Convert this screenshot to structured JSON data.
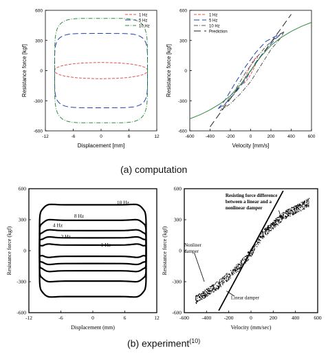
{
  "captions": {
    "computation": "(a)  computation",
    "experiment": "(b)  experiment",
    "experiment_ref": "(10)"
  },
  "chart_data": [
    {
      "id": "comp-hysteresis",
      "type": "line",
      "xlabel": "Displacement [mm]",
      "ylabel": "Resistance force [kgf]",
      "xlim": [
        -12,
        12
      ],
      "ylim": [
        -600,
        600
      ],
      "xticks": [
        -12,
        -6,
        0,
        6,
        12
      ],
      "yticks": [
        -600,
        -300,
        0,
        300,
        600
      ],
      "tick_labels_x": [
        "-12",
        "-6",
        "0",
        "6",
        "12"
      ],
      "tick_labels_y": [
        "-600",
        "-300",
        "0",
        "300",
        "600"
      ],
      "legend_position": "top-right",
      "series": [
        {
          "name": "1 Hz",
          "shape": "loop",
          "amplitude_x": 10,
          "amplitude_y": 80,
          "color": "#d9534f",
          "dash": "4,2"
        },
        {
          "name": "5 Hz",
          "shape": "loop",
          "amplitude_x": 10,
          "amplitude_y": 370,
          "color": "#1f3fae",
          "dash": "8,4"
        },
        {
          "name": "10 Hz",
          "shape": "loop",
          "amplitude_x": 10,
          "amplitude_y": 520,
          "color": "#2e8b3d",
          "dash": "6,2,1,2"
        }
      ]
    },
    {
      "id": "comp-velocity",
      "type": "line",
      "xlabel": "Velocity [mm/s]",
      "ylabel": "Resistance force [kgf]",
      "xlim": [
        -600,
        600
      ],
      "ylim": [
        -600,
        600
      ],
      "xticks": [
        -600,
        -400,
        -200,
        0,
        200,
        400,
        600
      ],
      "yticks": [
        -600,
        -300,
        0,
        300,
        600
      ],
      "tick_labels_x": [
        "-600",
        "-400",
        "-200",
        "0",
        "200",
        "400",
        "600"
      ],
      "tick_labels_y": [
        "-600",
        "-300",
        "0",
        "300",
        "600"
      ],
      "legend_position": "top-left",
      "series": [
        {
          "name": "1 Hz",
          "color": "#d9534f",
          "dash": "4,2",
          "points": [
            [
              -70,
              -130
            ],
            [
              -40,
              -100
            ],
            [
              0,
              -40
            ],
            [
              40,
              40
            ],
            [
              70,
              120
            ],
            [
              60,
              140
            ],
            [
              20,
              90
            ],
            [
              -20,
              10
            ],
            [
              -60,
              -80
            ],
            [
              -70,
              -130
            ]
          ]
        },
        {
          "name": "5 Hz",
          "color": "#1f3fae",
          "dash": "8,4",
          "points": [
            [
              -320,
              -380
            ],
            [
              -250,
              -330
            ],
            [
              -150,
              -220
            ],
            [
              -50,
              -90
            ],
            [
              50,
              80
            ],
            [
              150,
              210
            ],
            [
              250,
              320
            ],
            [
              320,
              380
            ],
            [
              260,
              350
            ],
            [
              150,
              290
            ],
            [
              50,
              180
            ],
            [
              -50,
              40
            ],
            [
              -150,
              -120
            ],
            [
              -250,
              -290
            ],
            [
              -320,
              -380
            ]
          ]
        },
        {
          "name": "10 Hz",
          "color": "#555555",
          "dash": "6,2,1,2",
          "points": [
            [
              -300,
              -400
            ],
            [
              -200,
              -330
            ],
            [
              -100,
              -230
            ],
            [
              0,
              -110
            ],
            [
              100,
              50
            ],
            [
              200,
              210
            ],
            [
              300,
              330
            ],
            [
              330,
              390
            ],
            [
              250,
              330
            ],
            [
              150,
              240
            ],
            [
              50,
              120
            ],
            [
              -50,
              -20
            ],
            [
              -150,
              -190
            ],
            [
              -250,
              -330
            ],
            [
              -300,
              -400
            ]
          ]
        },
        {
          "name": "Prediction",
          "color": "#222222",
          "dash": "10,5",
          "points": [
            [
              -400,
              -560
            ],
            [
              -300,
              -420
            ],
            [
              -200,
              -280
            ],
            [
              -100,
              -140
            ],
            [
              0,
              0
            ],
            [
              100,
              140
            ],
            [
              200,
              280
            ],
            [
              300,
              420
            ],
            [
              400,
              560
            ]
          ]
        },
        {
          "name": "",
          "color": "#2e8b3d",
          "dash": "",
          "points": [
            [
              -600,
              -480
            ],
            [
              -500,
              -440
            ],
            [
              -400,
              -390
            ],
            [
              -300,
              -330
            ],
            [
              -200,
              -250
            ],
            [
              -100,
              -140
            ],
            [
              0,
              0
            ],
            [
              100,
              140
            ],
            [
              200,
              250
            ],
            [
              300,
              330
            ],
            [
              400,
              390
            ],
            [
              500,
              440
            ],
            [
              600,
              480
            ]
          ]
        }
      ]
    },
    {
      "id": "exp-hysteresis",
      "type": "line",
      "xlabel": "Displacement (mm)",
      "ylabel": "Resistance force (kgf)",
      "xlim": [
        -12,
        12
      ],
      "ylim": [
        -600,
        600
      ],
      "xticks": [
        -12,
        -6,
        0,
        6,
        12
      ],
      "yticks": [
        -600,
        -300,
        0,
        300,
        600
      ],
      "tick_labels_x": [
        "-12",
        "-6",
        "0",
        "6",
        "12"
      ],
      "tick_labels_y": [
        "600",
        "300",
        "0",
        "-300",
        "-600"
      ],
      "tick_labels_y_values": [
        600,
        300,
        0,
        -300,
        -600
      ],
      "series": [
        {
          "name": "1 Hz",
          "amplitude_x": 10,
          "amplitude_y": 60
        },
        {
          "name": "2 Hz",
          "amplitude_x": 10,
          "amplitude_y": 130
        },
        {
          "name": "4 Hz",
          "amplitude_x": 10,
          "amplitude_y": 200
        },
        {
          "name": "8 Hz",
          "amplitude_x": 10,
          "amplitude_y": 300
        },
        {
          "name": "10 Hz",
          "amplitude_x": 10,
          "amplitude_y": 450
        }
      ],
      "annotations": [
        {
          "text": "10 Hz",
          "x": 4.5,
          "y": 450
        },
        {
          "text": "8 Hz",
          "x": -3.5,
          "y": 320
        },
        {
          "text": "4 Hz",
          "x": -7.5,
          "y": 230
        },
        {
          "text": "2 Hz",
          "x": -6.0,
          "y": 120
        },
        {
          "text": "1 Hz",
          "x": 1.5,
          "y": 40
        }
      ]
    },
    {
      "id": "exp-velocity",
      "type": "scatter",
      "xlabel": "Velocity (mm/sec)",
      "ylabel": "Resistance force (kgf)",
      "xlim": [
        -600,
        600
      ],
      "ylim": [
        -600,
        600
      ],
      "xticks": [
        -600,
        -400,
        -200,
        0,
        200,
        400,
        600
      ],
      "yticks": [
        -600,
        -300,
        0,
        300,
        600
      ],
      "tick_labels_x": [
        "-600",
        "-400",
        "-200",
        "0",
        "200",
        "400",
        "600"
      ],
      "tick_labels_y": [
        "600",
        "300",
        "0",
        "-300",
        "-600"
      ],
      "tick_labels_y_values": [
        600,
        300,
        0,
        -300,
        -600
      ],
      "point_cloud": {
        "x_range": [
          -500,
          520
        ],
        "band": [
          [
            -500,
            -470
          ],
          [
            -300,
            -330
          ],
          [
            -100,
            -140
          ],
          [
            0,
            -10
          ],
          [
            100,
            160
          ],
          [
            300,
            350
          ],
          [
            520,
            470
          ]
        ],
        "spread": 40,
        "count": 900
      },
      "linear_damper_line": [
        [
          -290,
          -580
        ],
        [
          290,
          580
        ]
      ],
      "annotations": [
        {
          "text": "Resisting force difference",
          "x": -230,
          "y": 520
        },
        {
          "text": "between a linear and a",
          "x": -230,
          "y": 460
        },
        {
          "text": "nonlinear damper",
          "x": -230,
          "y": 400
        },
        {
          "text": "Nonliner",
          "x": -600,
          "y": 40
        },
        {
          "text": "damper",
          "x": -600,
          "y": -20
        },
        {
          "text": "Linear damper",
          "x": -180,
          "y": -470
        }
      ]
    }
  ]
}
